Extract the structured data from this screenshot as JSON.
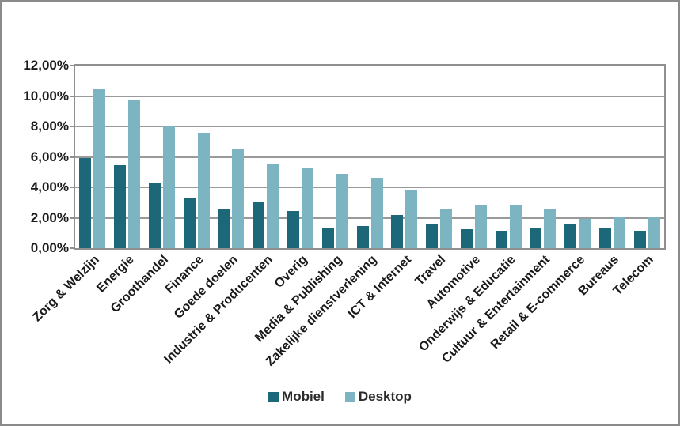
{
  "chart_data": {
    "type": "bar",
    "title": "",
    "xlabel": "",
    "ylabel": "",
    "categories": [
      "Zorg & Welzijn",
      "Energie",
      "Groothandel",
      "Finance",
      "Goede doelen",
      "Industrie & Producenten",
      "Overig",
      "Media & Publishing",
      "Zakelijke dienstverlening",
      "ICT & Internet",
      "Travel",
      "Automotive",
      "Onderwijs & Educatie",
      "Cultuur & Entertainment",
      "Retail & E-commerce",
      "Bureaus",
      "Telecom"
    ],
    "series": [
      {
        "name": "Mobiel",
        "color": "#1d6878",
        "values": [
          5.9,
          5.45,
          4.25,
          3.3,
          2.6,
          3.0,
          2.45,
          1.3,
          1.45,
          2.2,
          1.55,
          1.25,
          1.15,
          1.35,
          1.55,
          1.3,
          1.15
        ]
      },
      {
        "name": "Desktop",
        "color": "#7db4c2",
        "values": [
          10.5,
          9.75,
          8.0,
          7.6,
          6.55,
          5.55,
          5.25,
          4.9,
          4.65,
          3.85,
          2.55,
          2.85,
          2.85,
          2.6,
          1.9,
          2.1,
          2.05
        ]
      }
    ],
    "ylim": [
      0,
      12
    ],
    "y_ticks": [
      "0,00%",
      "2,00%",
      "4,00%",
      "6,00%",
      "8,00%",
      "10,00%",
      "12,00%"
    ],
    "grid": true,
    "legend_position": "bottom-center"
  },
  "colors": {
    "background": "#ffffff",
    "outer_border": "#8a8a8a",
    "plot_border": "#8f8f8f",
    "gridline": "#9a9a9a",
    "text": "#1a1a1a"
  }
}
